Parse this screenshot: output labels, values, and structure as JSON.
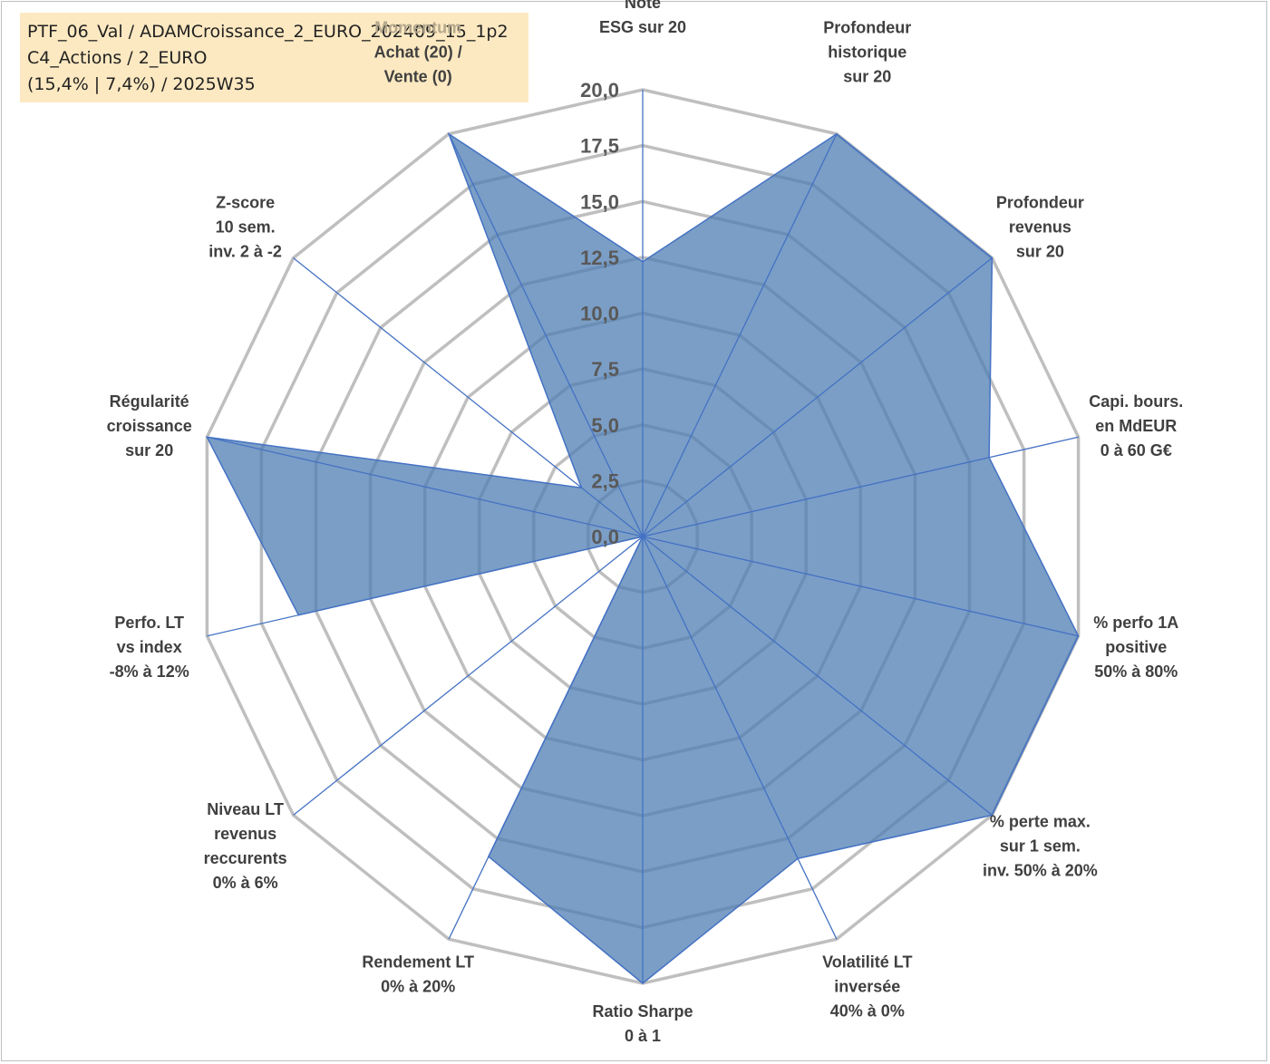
{
  "info": {
    "line1": "PTF_06_Val / ADAMCroissance_2_EURO_202409_15_1p2",
    "line2": "C4_Actions / 2_EURO",
    "line3": "(15,4% | 7,4%) / 2025W35"
  },
  "chart_data": {
    "type": "radar",
    "rmin": 0,
    "rmax": 20,
    "tick_step": 2.5,
    "ticks": [
      "0,0",
      "2,5",
      "5,0",
      "7,5",
      "10,0",
      "12,5",
      "15,0",
      "17,5",
      "20,0"
    ],
    "colors": {
      "fill": "#4f7eb3",
      "line": "#4472c4",
      "grid": "#bfbfbf",
      "highlight_label": "#b4a88d"
    },
    "axes": [
      {
        "lines": [
          "Note",
          "ESG sur 20"
        ]
      },
      {
        "lines": [
          "Profondeur",
          "historique",
          "sur 20"
        ]
      },
      {
        "lines": [
          "Profondeur",
          "revenus",
          "sur 20"
        ]
      },
      {
        "lines": [
          "Capi. bours.",
          "en MdEUR",
          "0 à 60 G€"
        ]
      },
      {
        "lines": [
          "% perfo 1A",
          "positive",
          "50% à 80%"
        ]
      },
      {
        "lines": [
          "% perte max.",
          "sur 1 sem.",
          "inv. 50% à 20%"
        ]
      },
      {
        "lines": [
          "Volatilité LT",
          "inversée",
          "40% à 0%"
        ]
      },
      {
        "lines": [
          "Ratio Sharpe",
          "0 à 1"
        ]
      },
      {
        "lines": [
          "Rendement LT",
          "0% à 20%"
        ]
      },
      {
        "lines": [
          "Niveau LT",
          "revenus",
          "reccurents",
          "0% à 6%"
        ]
      },
      {
        "lines": [
          "Perfo. LT",
          "vs index",
          "-8% à 12%"
        ]
      },
      {
        "lines": [
          "Régularité",
          "croissance",
          "sur 20"
        ]
      },
      {
        "lines": [
          "Z-score",
          "10 sem.",
          "inv. 2 à -2"
        ]
      },
      {
        "lines": [
          "Momentum",
          "Achat (20) /",
          "Vente (0)"
        ],
        "highlight_first": true
      }
    ],
    "values": [
      12.3,
      20,
      20,
      15.9,
      20,
      20,
      16,
      20,
      15.9,
      0,
      15.8,
      20,
      3.5,
      20
    ]
  }
}
